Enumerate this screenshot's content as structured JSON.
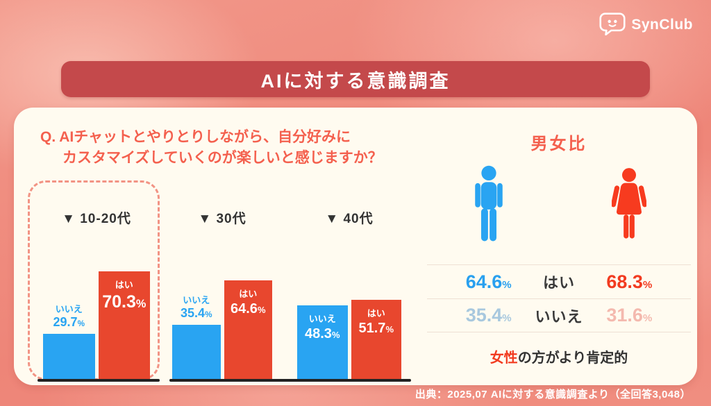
{
  "logo": {
    "name": "SynClub"
  },
  "banner": {
    "title": "AIに対する意識調査"
  },
  "question": {
    "prefix": "Q.",
    "line1": "AIチャットとやりとりしながら、自分好みに",
    "line2": "カスタマイズしていくのが楽しいと感じますか？"
  },
  "chart_data": {
    "type": "bar",
    "unit": "%",
    "ylim": [
      0,
      100
    ],
    "legend": "none",
    "groups": [
      {
        "label": "▼ 10-20代",
        "highlighted": true,
        "series": [
          {
            "name": "いいえ",
            "value": 29.7,
            "color": "#29a4f2",
            "label_position": "outside"
          },
          {
            "name": "はい",
            "value": 70.3,
            "color": "#e8472e",
            "label_position": "inside",
            "emphasis": true
          }
        ]
      },
      {
        "label": "▼ 30代",
        "highlighted": false,
        "series": [
          {
            "name": "いいえ",
            "value": 35.4,
            "color": "#29a4f2",
            "label_position": "outside"
          },
          {
            "name": "はい",
            "value": 64.6,
            "color": "#e8472e",
            "label_position": "inside"
          }
        ]
      },
      {
        "label": "▼ 40代",
        "highlighted": false,
        "series": [
          {
            "name": "いいえ",
            "value": 48.3,
            "color": "#29a4f2",
            "label_position": "inside"
          },
          {
            "name": "はい",
            "value": 51.7,
            "color": "#e8472e",
            "label_position": "inside"
          }
        ]
      }
    ]
  },
  "gender": {
    "title": "男女比",
    "unit": "%",
    "male_color": "#29a4f2",
    "female_color": "#f73b1f",
    "rows": [
      {
        "male": "64.6",
        "label": "はい",
        "female": "68.3"
      },
      {
        "male": "35.4",
        "label": "いいえ",
        "female": "31.6"
      }
    ],
    "note": {
      "highlight": "女性",
      "rest": "の方がより肯定的"
    }
  },
  "footer": {
    "source": "出典：2025,07 AIに対する意識調査より（全回答3,048）"
  }
}
